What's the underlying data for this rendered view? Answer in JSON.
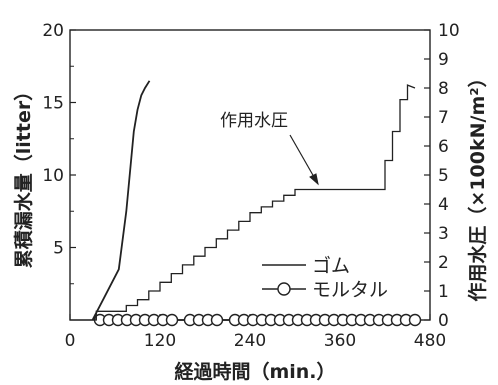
{
  "chart_data": {
    "type": "line",
    "title": "",
    "xlabel": "経過時間（min.）",
    "ylabel_left": "累積漏水量（litter）",
    "ylabel_right": "作用水圧（×100kN/m²）",
    "xlim": [
      0,
      480
    ],
    "ylim_left": [
      0,
      20
    ],
    "ylim_right": [
      0,
      10
    ],
    "xticks": [
      "0",
      "120",
      "240",
      "360",
      "480"
    ],
    "yticks_left": [
      "5",
      "10",
      "15",
      "20"
    ],
    "yticks_right": [
      "0",
      "1",
      "2",
      "3",
      "4",
      "5",
      "6",
      "7",
      "8",
      "9",
      "10"
    ],
    "annotation": "作用水圧",
    "legend_position": "lower-right",
    "series": [
      {
        "name": "ゴム",
        "axis": "left",
        "style": "line",
        "x": [
          30,
          45,
          55,
          65,
          75,
          85,
          90,
          95,
          100,
          106
        ],
        "y": [
          0,
          1.5,
          2.5,
          3.5,
          7.5,
          13,
          14.5,
          15.5,
          16,
          16.5
        ]
      },
      {
        "name": "モルタル",
        "axis": "left",
        "style": "line-marker",
        "x": [
          40,
          52,
          64,
          76,
          88,
          100,
          112,
          124,
          136,
          160,
          172,
          184,
          196,
          220,
          232,
          244,
          256,
          268,
          280,
          292,
          304,
          316,
          328,
          340,
          352,
          364,
          376,
          388,
          400,
          412,
          424,
          436,
          448,
          460
        ],
        "y": [
          0,
          0,
          0,
          0,
          0,
          0,
          0,
          0,
          0,
          0,
          0,
          0,
          0,
          0,
          0,
          0,
          0,
          0,
          0,
          0,
          0,
          0,
          0,
          0,
          0,
          0,
          0,
          0,
          0,
          0,
          0,
          0,
          0,
          0
        ]
      },
      {
        "name": "作用水圧",
        "axis": "right",
        "style": "step",
        "x": [
          0,
          35,
          35,
          75,
          75,
          90,
          90,
          105,
          105,
          120,
          120,
          135,
          135,
          150,
          150,
          165,
          165,
          180,
          180,
          195,
          195,
          210,
          210,
          225,
          225,
          240,
          240,
          255,
          255,
          270,
          270,
          285,
          285,
          300,
          300,
          420,
          420,
          430,
          430,
          440,
          440,
          450,
          450,
          460
        ],
        "y": [
          0,
          0,
          0.3,
          0.3,
          0.5,
          0.5,
          0.7,
          0.7,
          1.0,
          1.0,
          1.3,
          1.3,
          1.6,
          1.6,
          1.9,
          1.9,
          2.2,
          2.2,
          2.5,
          2.5,
          2.8,
          2.8,
          3.1,
          3.1,
          3.4,
          3.4,
          3.7,
          3.7,
          3.9,
          3.9,
          4.1,
          4.1,
          4.3,
          4.3,
          4.5,
          4.5,
          5.5,
          5.5,
          6.5,
          6.5,
          7.6,
          7.6,
          8.1,
          8.0
        ]
      }
    ]
  }
}
